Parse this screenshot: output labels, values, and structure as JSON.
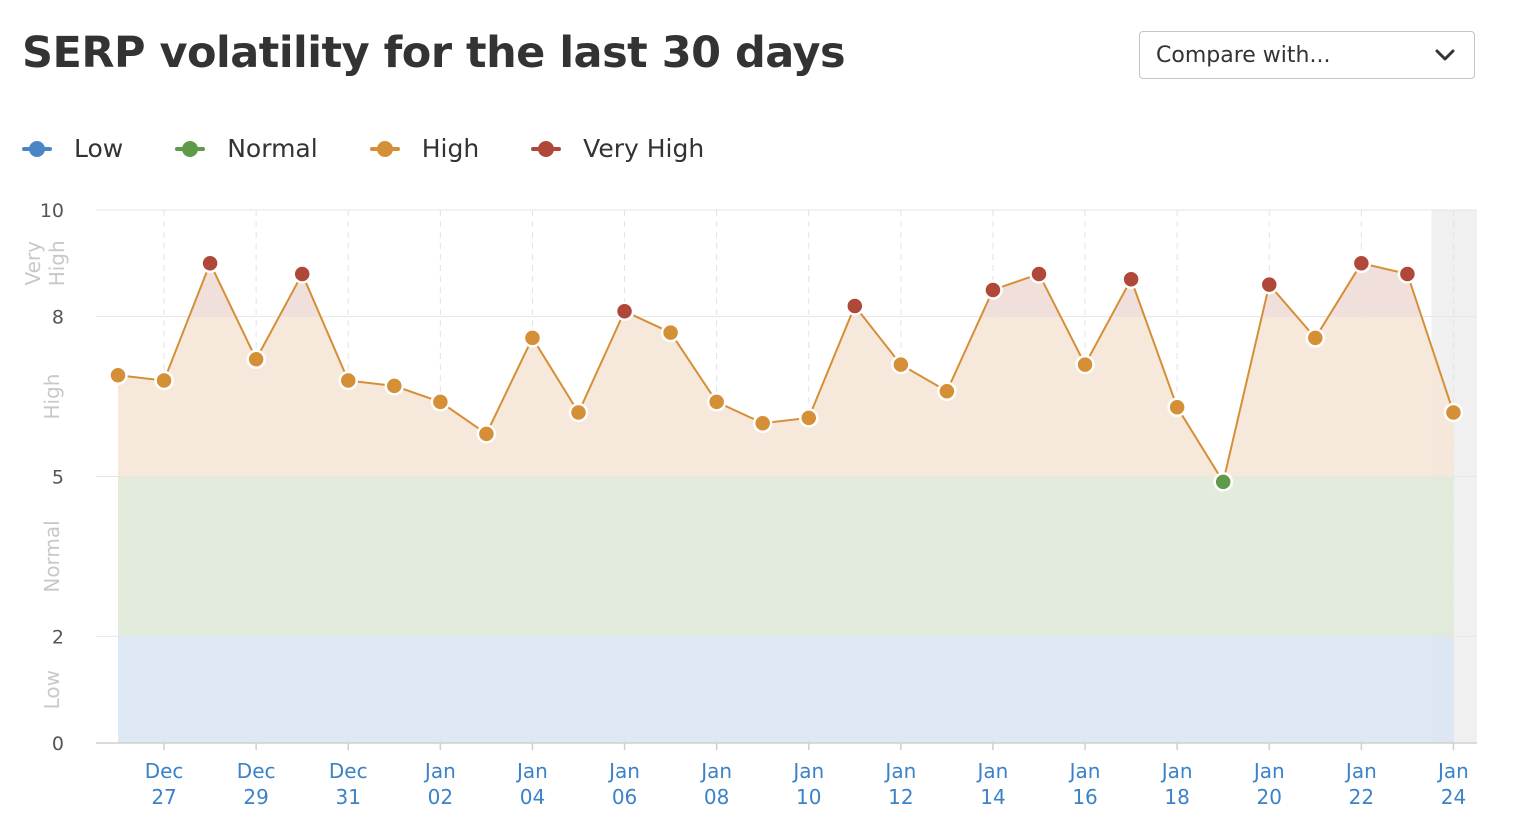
{
  "header": {
    "title": "SERP volatility for the last 30 days",
    "compare_label": "Compare with...",
    "compare_icon": "chevron-down-icon"
  },
  "legend": [
    {
      "label": "Low",
      "color": "#4a86c5"
    },
    {
      "label": "Normal",
      "color": "#5e9a48"
    },
    {
      "label": "High",
      "color": "#d58f36"
    },
    {
      "label": "Very High",
      "color": "#b0483a"
    }
  ],
  "chart_data": {
    "type": "line",
    "title": "SERP volatility for the last 30 days",
    "y_ticks": [
      0,
      2,
      5,
      8,
      10
    ],
    "ylim": [
      0,
      10
    ],
    "bands": [
      {
        "label": "Low",
        "from": 0,
        "to": 2,
        "fill": "#dbe6f3"
      },
      {
        "label": "Normal",
        "from": 2,
        "to": 5,
        "fill": "#e1ead9"
      },
      {
        "label": "High",
        "from": 5,
        "to": 8,
        "fill": "#f5e7d9"
      },
      {
        "label": "Very High",
        "from": 8,
        "to": 10,
        "fill": "#f0dcd9"
      }
    ],
    "band_axis_labels": [
      {
        "text": "Low",
        "mid": 1
      },
      {
        "text": "Normal",
        "mid": 3.5
      },
      {
        "text": "High",
        "mid": 6.5
      },
      {
        "text": "Very High",
        "mid": 9
      }
    ],
    "x_labels": [
      {
        "index": 1,
        "line1": "Dec",
        "line2": "27"
      },
      {
        "index": 3,
        "line1": "Dec",
        "line2": "29"
      },
      {
        "index": 5,
        "line1": "Dec",
        "line2": "31"
      },
      {
        "index": 7,
        "line1": "Jan",
        "line2": "02"
      },
      {
        "index": 9,
        "line1": "Jan",
        "line2": "04"
      },
      {
        "index": 11,
        "line1": "Jan",
        "line2": "06"
      },
      {
        "index": 13,
        "line1": "Jan",
        "line2": "08"
      },
      {
        "index": 15,
        "line1": "Jan",
        "line2": "10"
      },
      {
        "index": 17,
        "line1": "Jan",
        "line2": "12"
      },
      {
        "index": 19,
        "line1": "Jan",
        "line2": "14"
      },
      {
        "index": 21,
        "line1": "Jan",
        "line2": "16"
      },
      {
        "index": 23,
        "line1": "Jan",
        "line2": "18"
      },
      {
        "index": 25,
        "line1": "Jan",
        "line2": "20"
      },
      {
        "index": 27,
        "line1": "Jan",
        "line2": "22"
      },
      {
        "index": 29,
        "line1": "Jan",
        "line2": "24"
      }
    ],
    "series": [
      {
        "values": [
          6.9,
          6.8,
          9.0,
          7.2,
          8.8,
          6.8,
          6.7,
          6.4,
          5.8,
          7.6,
          6.2,
          8.1,
          7.7,
          6.4,
          6.0,
          6.1,
          8.2,
          7.1,
          6.6,
          8.5,
          8.8,
          7.1,
          8.7,
          6.3,
          4.9,
          8.6,
          7.6,
          9.0,
          8.8,
          6.2
        ],
        "line_color": "#d58f36"
      }
    ],
    "highlight_last": true,
    "colors": {
      "low": "#4a86c5",
      "normal": "#5e9a48",
      "high": "#d58f36",
      "very_high": "#b0483a",
      "x_label": "#3b82c8"
    }
  }
}
